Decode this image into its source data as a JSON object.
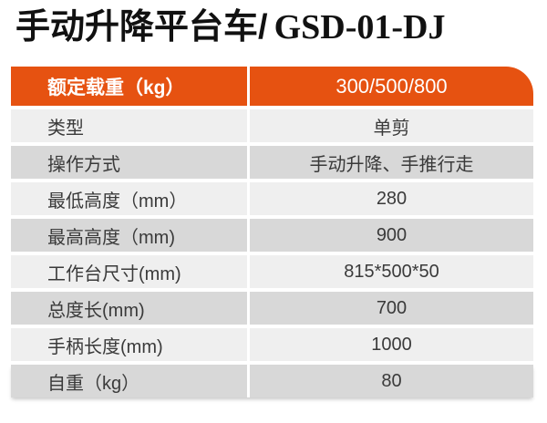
{
  "title": {
    "product_name": "手动升降平台车/",
    "model_code": "GSD-01-DJ"
  },
  "colors": {
    "accent": "#e65211",
    "row_light": "#efefef",
    "row_dark": "#d8d8d8",
    "header_text": "#ffffff",
    "text": "#3a3a3a",
    "title_color": "#111111"
  },
  "table": {
    "header": {
      "label": "额定载重（kg）",
      "value": "300/500/800"
    },
    "rows": [
      {
        "label": "类型",
        "value": "单剪"
      },
      {
        "label": "操作方式",
        "value": "手动升降、手推行走"
      },
      {
        "label": "最低高度（mm）",
        "value": "280"
      },
      {
        "label": "最高高度（mm)",
        "value": "900"
      },
      {
        "label": "工作台尺寸(mm)",
        "value": "815*500*50"
      },
      {
        "label": "总度长(mm)",
        "value": "700"
      },
      {
        "label": "手柄长度(mm)",
        "value": "1000"
      },
      {
        "label": "自重（kg）",
        "value": "80"
      }
    ]
  }
}
